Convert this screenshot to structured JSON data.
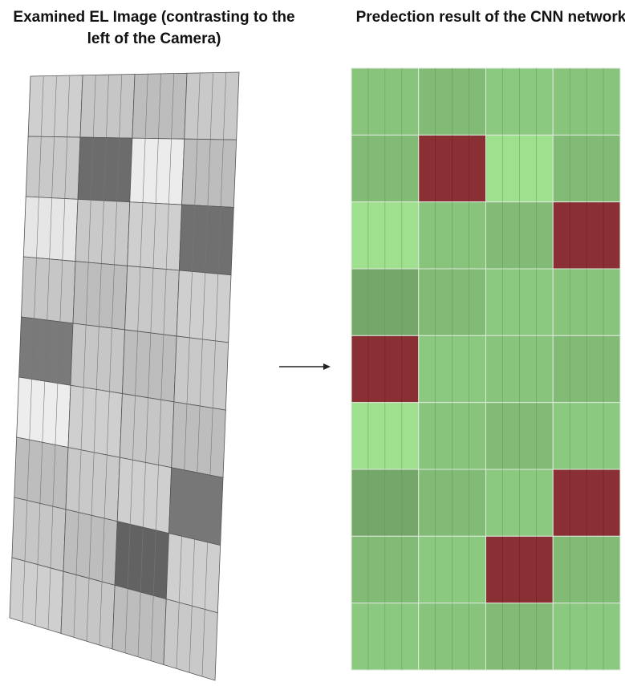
{
  "left_panel": {
    "title": "Examined EL Image (contrasting to the left of the Camera)"
  },
  "right_panel": {
    "title": "Predection result of the CNN network"
  }
}
